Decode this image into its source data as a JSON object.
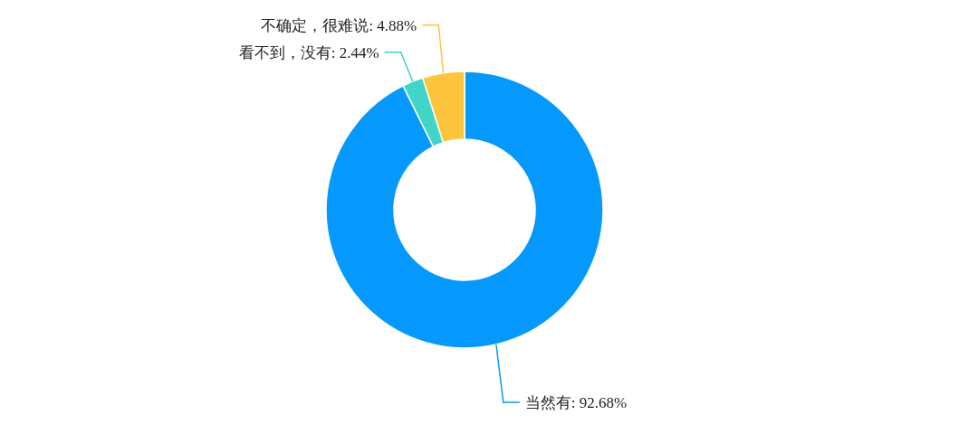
{
  "chart_data": {
    "type": "donut",
    "categories": [
      "当然有",
      "看不到，没有",
      "不确定，很难说"
    ],
    "values": [
      92.68,
      2.44,
      4.88
    ],
    "value_labels": [
      "92.68%",
      "2.44%",
      "4.88%"
    ],
    "colors": [
      "#0599fd",
      "#3fd5c8",
      "#fdc53c"
    ],
    "legend": false
  }
}
